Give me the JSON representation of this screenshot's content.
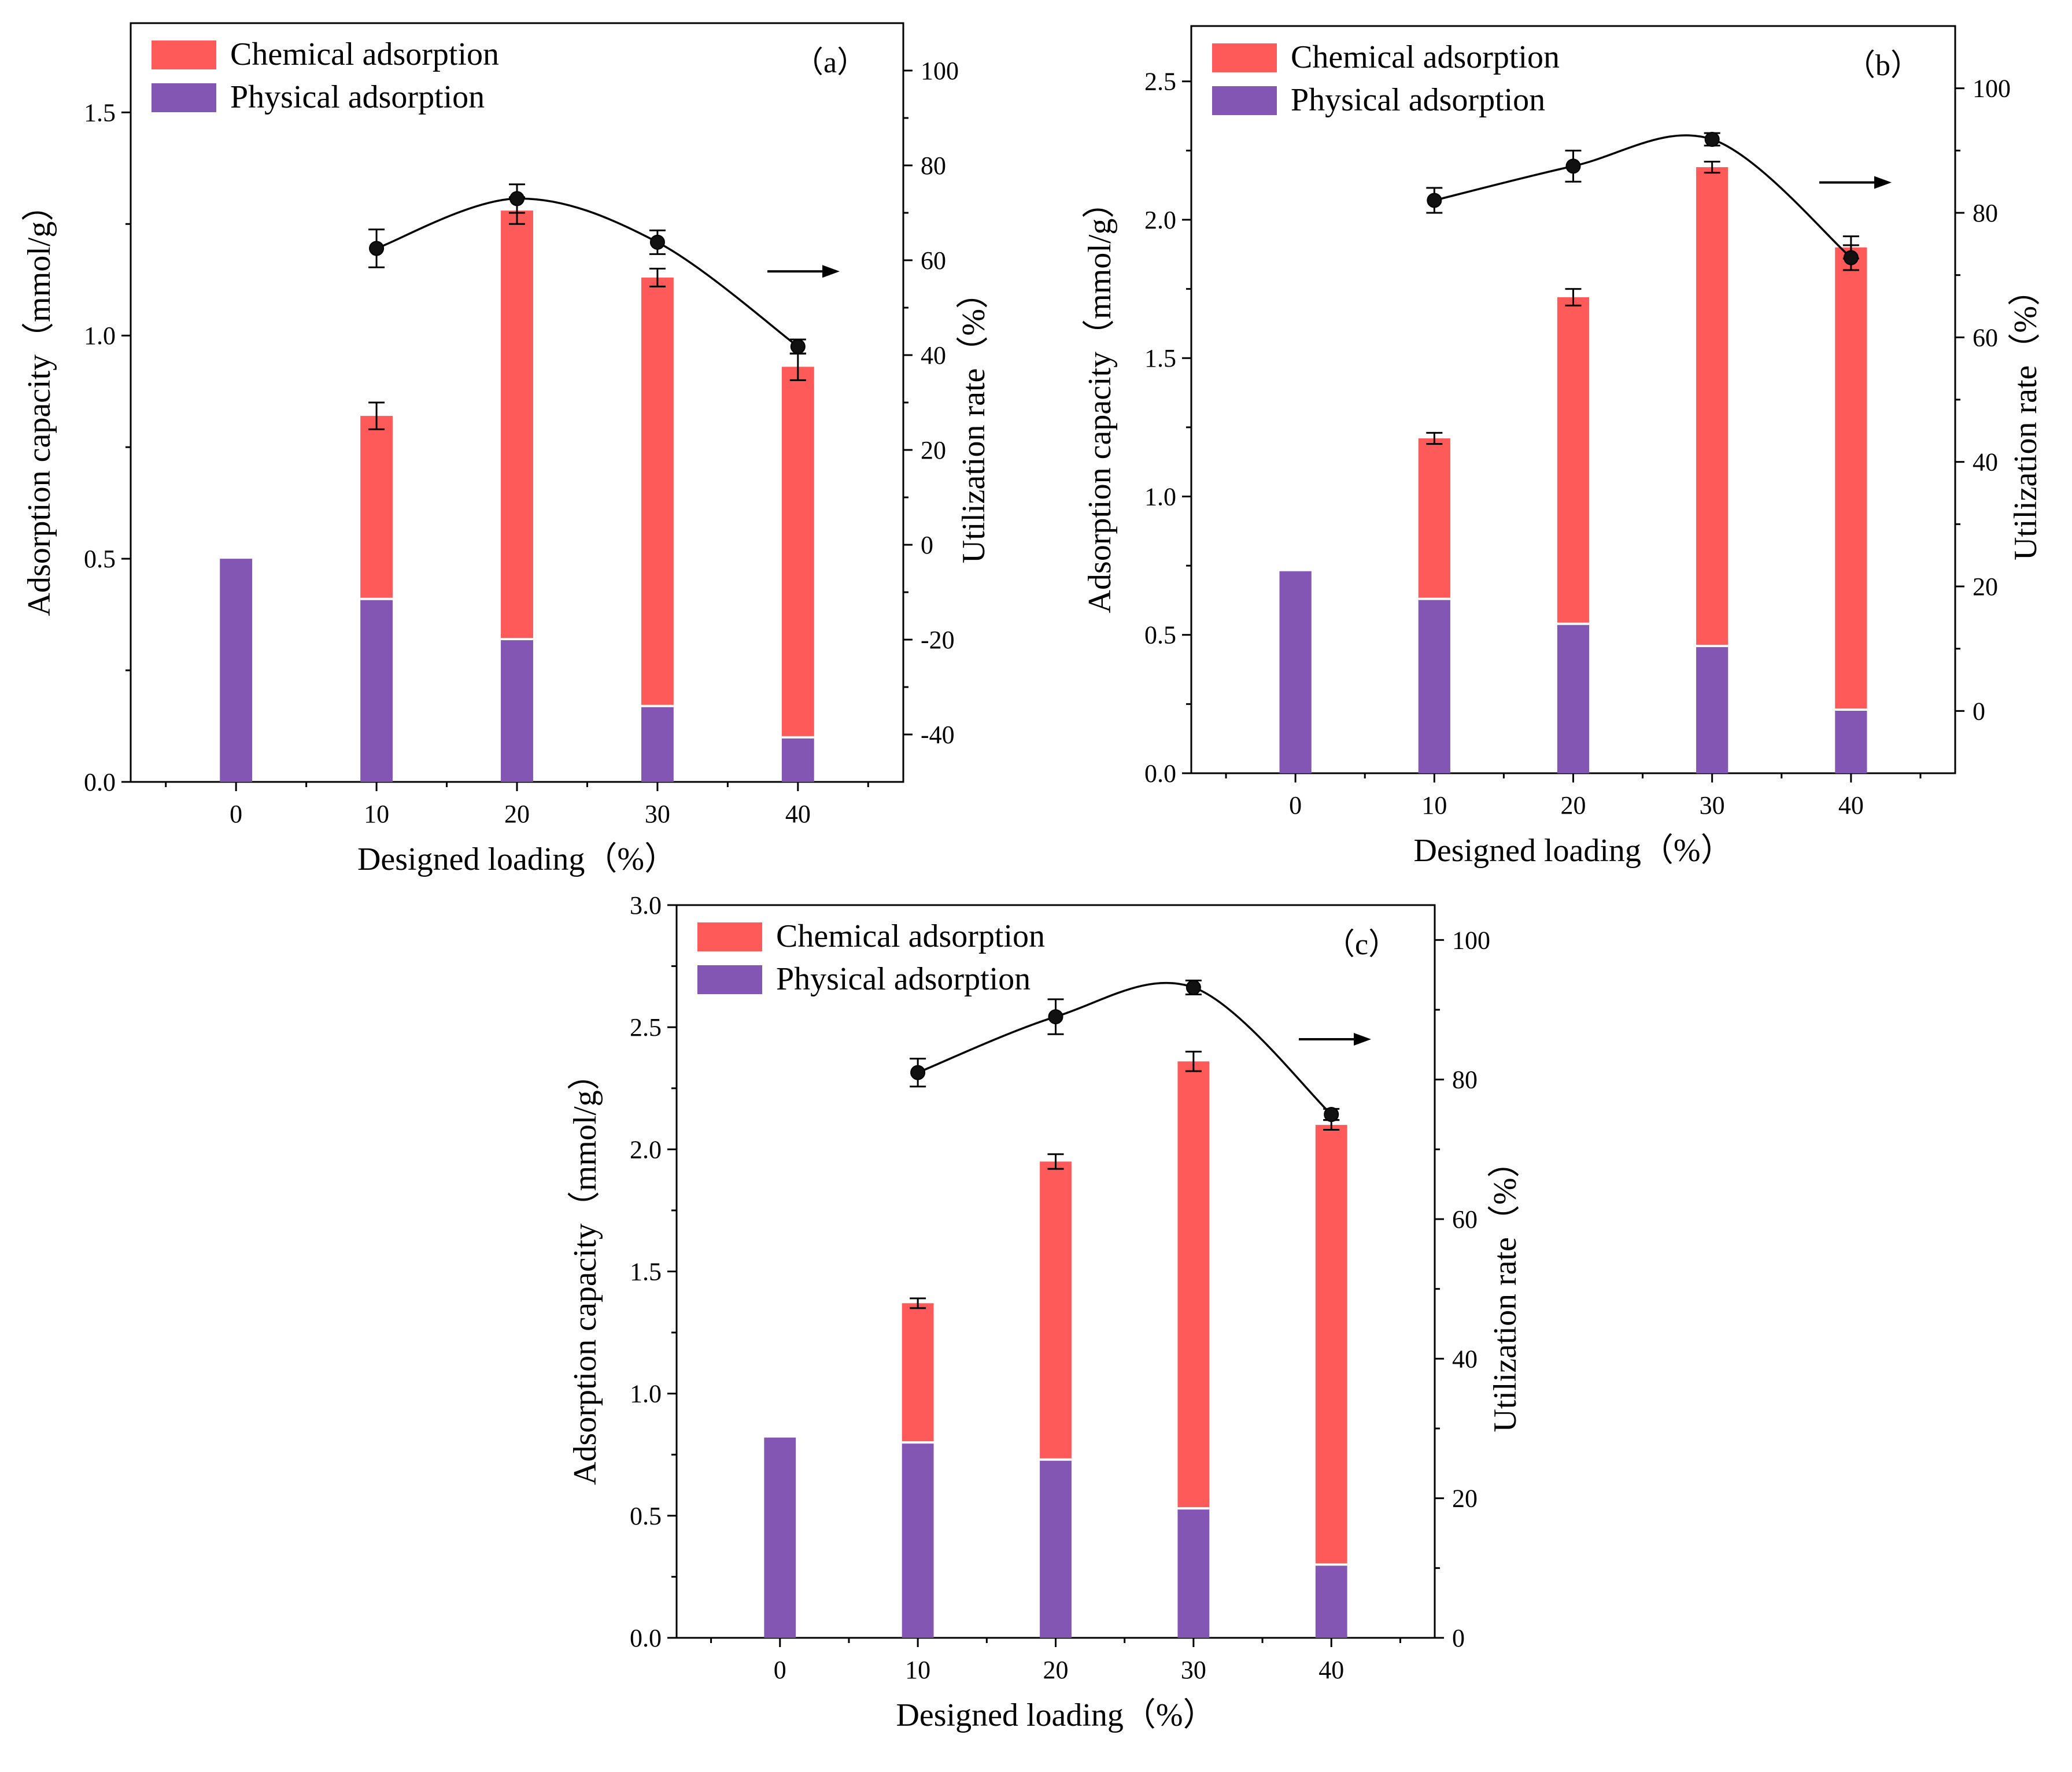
{
  "chart_data": [
    {
      "type": "bar",
      "panel_label": "（a）",
      "categories": [
        "0",
        "10",
        "20",
        "30",
        "40"
      ],
      "series": [
        {
          "name": "Physical adsorption",
          "color": "#8456b4",
          "values": [
            0.5,
            0.41,
            0.32,
            0.17,
            0.1
          ]
        },
        {
          "name": "Chemical adsorption",
          "color": "#ff5a5a",
          "values": [
            0.0,
            0.41,
            0.96,
            0.96,
            0.83
          ]
        }
      ],
      "totals": [
        0.5,
        0.82,
        1.28,
        1.13,
        0.93
      ],
      "total_err": [
        0,
        0.03,
        0.03,
        0.02,
        0.03
      ],
      "utilization": {
        "name": "Utilization rate",
        "x": [
          "10",
          "20",
          "30",
          "40"
        ],
        "values": [
          62.5,
          73,
          63.8,
          41.8
        ],
        "err": [
          4,
          3,
          2.5,
          1.5
        ]
      },
      "xlabel": "Designed loading（%）",
      "ylabel": "Adsorption capacity（mmol/g）",
      "y2label": "Utilization rate（%）",
      "ylim": [
        0,
        1.7
      ],
      "y_ticks": [
        "0.0",
        "0.5",
        "1.0",
        "1.5"
      ],
      "y2lim": [
        -50,
        110
      ],
      "y2_ticks": [
        "-40",
        "-20",
        "0",
        "20",
        "40",
        "60",
        "80",
        "100"
      ],
      "arrow": "right",
      "legend": [
        "Chemical adsorption",
        "Physical adsorption"
      ]
    },
    {
      "type": "bar",
      "panel_label": "（b）",
      "categories": [
        "0",
        "10",
        "20",
        "30",
        "40"
      ],
      "series": [
        {
          "name": "Physical adsorption",
          "color": "#8456b4",
          "values": [
            0.73,
            0.63,
            0.54,
            0.46,
            0.23
          ]
        },
        {
          "name": "Chemical adsorption",
          "color": "#ff5a5a",
          "values": [
            0.0,
            0.58,
            1.18,
            1.73,
            1.67
          ]
        }
      ],
      "totals": [
        0.73,
        1.21,
        1.72,
        2.19,
        1.9
      ],
      "total_err": [
        0,
        0.02,
        0.03,
        0.02,
        0.04
      ],
      "utilization": {
        "name": "Utilization rate",
        "x": [
          "10",
          "20",
          "30",
          "40"
        ],
        "values": [
          82,
          87.5,
          91.8,
          72.8
        ],
        "err": [
          2,
          2.5,
          1,
          2
        ]
      },
      "xlabel": "Designed loading（%）",
      "ylabel": "Adsorption capacity（mmol/g）",
      "y2label": "Utilization rate（%）",
      "ylim": [
        0,
        2.7
      ],
      "y_ticks": [
        "0.0",
        "0.5",
        "1.0",
        "1.5",
        "2.0",
        "2.5"
      ],
      "y2lim": [
        -10,
        110
      ],
      "y2_ticks": [
        "0",
        "20",
        "40",
        "60",
        "80",
        "100"
      ],
      "arrow": "right",
      "legend": [
        "Chemical adsorption",
        "Physical adsorption"
      ]
    },
    {
      "type": "bar",
      "panel_label": "（c）",
      "categories": [
        "0",
        "10",
        "20",
        "30",
        "40"
      ],
      "series": [
        {
          "name": "Physical adsorption",
          "color": "#8456b4",
          "values": [
            0.82,
            0.8,
            0.73,
            0.53,
            0.3
          ]
        },
        {
          "name": "Chemical adsorption",
          "color": "#ff5a5a",
          "values": [
            0.0,
            0.57,
            1.22,
            1.83,
            1.8
          ]
        }
      ],
      "totals": [
        0.82,
        1.37,
        1.95,
        2.36,
        2.1
      ],
      "total_err": [
        0,
        0.02,
        0.03,
        0.04,
        0.02
      ],
      "utilization": {
        "name": "Utilization rate",
        "x": [
          "10",
          "20",
          "30",
          "40"
        ],
        "values": [
          81,
          89,
          93.2,
          75
        ],
        "err": [
          2,
          2.5,
          1,
          0.8
        ]
      },
      "xlabel": "Designed loading（%）",
      "ylabel": "Adsorption capacity（mmol/g）",
      "y2label": "Utilization rate（%）",
      "ylim": [
        0,
        3.0
      ],
      "y_ticks": [
        "0.0",
        "0.5",
        "1.0",
        "1.5",
        "2.0",
        "2.5",
        "3.0"
      ],
      "y2lim": [
        0,
        105
      ],
      "y2_ticks": [
        "0",
        "20",
        "40",
        "60",
        "80",
        "100"
      ],
      "arrow": "right",
      "legend": [
        "Chemical adsorption",
        "Physical adsorption"
      ]
    }
  ]
}
